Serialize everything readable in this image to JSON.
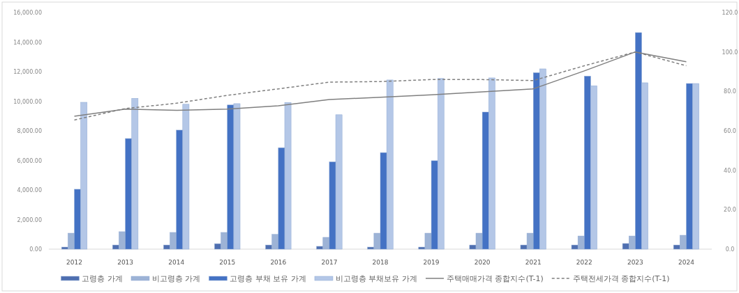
{
  "chart_data": {
    "type": "bar",
    "categories": [
      "2012",
      "2013",
      "2014",
      "2015",
      "2016",
      "2017",
      "2018",
      "2019",
      "2020",
      "2021",
      "2022",
      "2023",
      "2024"
    ],
    "series": [
      {
        "name": "고령층 가계",
        "color": "#4f6fb0",
        "values": [
          140,
          280,
          280,
          370,
          280,
          190,
          140,
          140,
          280,
          280,
          280,
          380,
          280
        ]
      },
      {
        "name": "비고령층 가계",
        "color": "#9db3d6",
        "values": [
          1080,
          1180,
          1130,
          1130,
          1000,
          800,
          1080,
          1080,
          1080,
          1080,
          890,
          890,
          940
        ]
      },
      {
        "name": "고령층 부채 보유 가계",
        "color": "#4472c4",
        "values": [
          4050,
          7480,
          8050,
          9750,
          6860,
          5900,
          6530,
          5980,
          9270,
          11930,
          11700,
          14640,
          11200
        ]
      },
      {
        "name": "비고령층 부채보유 가계",
        "color": "#b4c7e7",
        "values": [
          9930,
          10200,
          9800,
          9840,
          9920,
          9090,
          11440,
          11540,
          11580,
          12190,
          11050,
          11250,
          11200
        ]
      },
      {
        "name": "주택매매가격 종합지수(T-1)",
        "type": "line",
        "axis": "y2",
        "color": "#7f7f7f",
        "line_style": "solid",
        "values": [
          67.4,
          71,
          70.4,
          71,
          72.7,
          75.9,
          77,
          78.3,
          79.8,
          81.3,
          90.4,
          100,
          95
        ]
      },
      {
        "name": "주택전세가격 종합지수(T-1)",
        "type": "line",
        "axis": "y2",
        "color": "#7f7f7f",
        "line_style": "dashed",
        "values": [
          65.5,
          71.3,
          74,
          78,
          81.3,
          84.7,
          85,
          86,
          86,
          85.5,
          93,
          100,
          93
        ]
      }
    ],
    "ylim": [
      0,
      16000
    ],
    "yticks": [
      {
        "value": 0,
        "label": "0.00"
      },
      {
        "value": 2000,
        "label": "2,000.00"
      },
      {
        "value": 4000,
        "label": "4,000.00"
      },
      {
        "value": 6000,
        "label": "6,000.00"
      },
      {
        "value": 8000,
        "label": "8,000.00"
      },
      {
        "value": 10000,
        "label": "10,000.00"
      },
      {
        "value": 12000,
        "label": "12,000.00"
      },
      {
        "value": 14000,
        "label": "14,000.00"
      },
      {
        "value": 16000,
        "label": "16,000.00"
      }
    ],
    "y2lim": [
      0,
      120
    ],
    "y2ticks": [
      {
        "value": 0,
        "label": "0.0"
      },
      {
        "value": 20,
        "label": "20.0"
      },
      {
        "value": 40,
        "label": "40.0"
      },
      {
        "value": 60,
        "label": "60.0"
      },
      {
        "value": 80,
        "label": "80.0"
      },
      {
        "value": 100,
        "label": "100.0"
      },
      {
        "value": 120,
        "label": "120.0"
      }
    ],
    "legend": "bottom",
    "grid": false
  }
}
